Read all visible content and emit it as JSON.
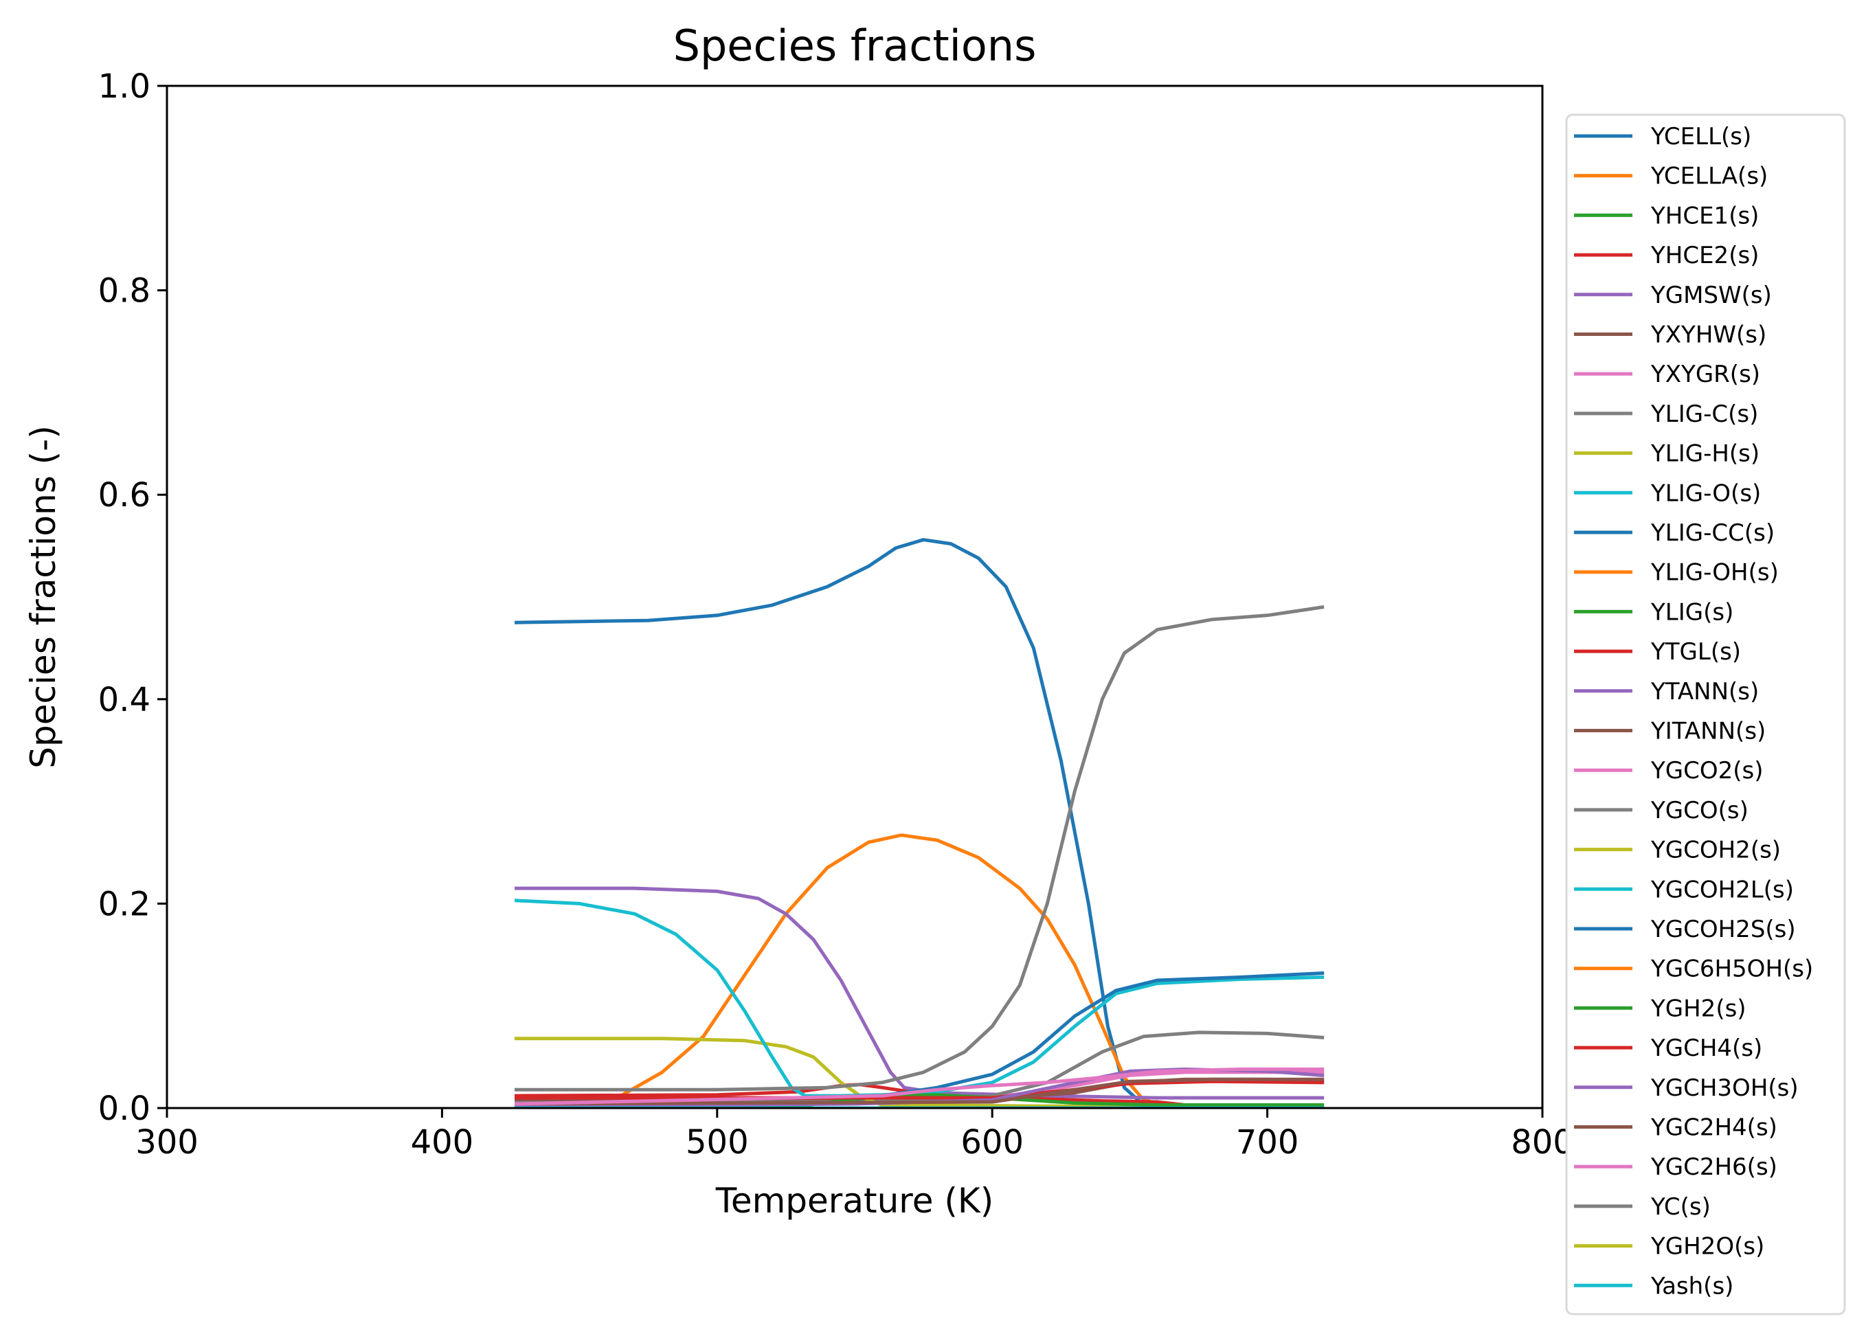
{
  "chart_data": {
    "type": "line",
    "title": "Species fractions",
    "xlabel": "Temperature (K)",
    "ylabel": "Species fractions (-)",
    "xlim": [
      300,
      800
    ],
    "ylim": [
      0.0,
      1.0
    ],
    "xticks": [
      "300",
      "400",
      "500",
      "600",
      "700",
      "800"
    ],
    "yticks": [
      "0.0",
      "0.2",
      "0.4",
      "0.6",
      "0.8",
      "1.0"
    ],
    "grid": false,
    "legend_position": "right, outside plot",
    "series": [
      {
        "name": "YCELL(s)",
        "color": "#1f77b4",
        "points": [
          [
            427,
            0.475
          ],
          [
            450,
            0.476
          ],
          [
            475,
            0.477
          ],
          [
            500,
            0.482
          ],
          [
            520,
            0.492
          ],
          [
            540,
            0.51
          ],
          [
            555,
            0.53
          ],
          [
            565,
            0.548
          ],
          [
            575,
            0.556
          ],
          [
            585,
            0.552
          ],
          [
            595,
            0.538
          ],
          [
            605,
            0.51
          ],
          [
            615,
            0.45
          ],
          [
            625,
            0.34
          ],
          [
            635,
            0.2
          ],
          [
            642,
            0.08
          ],
          [
            648,
            0.02
          ],
          [
            655,
            0.003
          ],
          [
            720,
            0.0
          ]
        ]
      },
      {
        "name": "YCELLA(s)",
        "color": "#ff7f0e",
        "points": [
          [
            427,
            0.0
          ],
          [
            450,
            0.003
          ],
          [
            465,
            0.012
          ],
          [
            480,
            0.035
          ],
          [
            495,
            0.07
          ],
          [
            510,
            0.13
          ],
          [
            525,
            0.19
          ],
          [
            540,
            0.235
          ],
          [
            555,
            0.26
          ],
          [
            567,
            0.267
          ],
          [
            580,
            0.262
          ],
          [
            595,
            0.245
          ],
          [
            610,
            0.215
          ],
          [
            620,
            0.185
          ],
          [
            630,
            0.14
          ],
          [
            640,
            0.08
          ],
          [
            648,
            0.03
          ],
          [
            655,
            0.008
          ],
          [
            665,
            0.001
          ],
          [
            720,
            0.0
          ]
        ]
      },
      {
        "name": "YHCE1(s)",
        "color": "#2ca02c",
        "points": [
          [
            427,
            0.0
          ],
          [
            720,
            0.0
          ]
        ]
      },
      {
        "name": "YHCE2(s)",
        "color": "#d62728",
        "points": [
          [
            427,
            0.012
          ],
          [
            500,
            0.013
          ],
          [
            530,
            0.016
          ],
          [
            545,
            0.022
          ],
          [
            552,
            0.023
          ],
          [
            560,
            0.02
          ],
          [
            570,
            0.016
          ],
          [
            590,
            0.012
          ],
          [
            620,
            0.009
          ],
          [
            640,
            0.007
          ],
          [
            660,
            0.006
          ],
          [
            670,
            0.003
          ],
          [
            720,
            0.0
          ]
        ]
      },
      {
        "name": "YGMSW(s)",
        "color": "#9467bd",
        "points": [
          [
            427,
            0.215
          ],
          [
            470,
            0.215
          ],
          [
            500,
            0.212
          ],
          [
            515,
            0.205
          ],
          [
            525,
            0.19
          ],
          [
            535,
            0.165
          ],
          [
            545,
            0.125
          ],
          [
            555,
            0.075
          ],
          [
            563,
            0.035
          ],
          [
            568,
            0.02
          ],
          [
            580,
            0.015
          ],
          [
            620,
            0.012
          ],
          [
            660,
            0.01
          ],
          [
            720,
            0.01
          ]
        ]
      },
      {
        "name": "YXYHW(s)",
        "color": "#8c564b",
        "points": [
          [
            427,
            0.008
          ],
          [
            550,
            0.008
          ],
          [
            600,
            0.009
          ],
          [
            630,
            0.015
          ],
          [
            650,
            0.025
          ],
          [
            670,
            0.028
          ],
          [
            700,
            0.028
          ],
          [
            720,
            0.027
          ]
        ]
      },
      {
        "name": "YXYGR(s)",
        "color": "#e377c2",
        "points": [
          [
            427,
            0.005
          ],
          [
            550,
            0.006
          ],
          [
            600,
            0.01
          ],
          [
            630,
            0.022
          ],
          [
            650,
            0.032
          ],
          [
            670,
            0.035
          ],
          [
            700,
            0.035
          ],
          [
            720,
            0.035
          ]
        ]
      },
      {
        "name": "YLIG-C(s)",
        "color": "#7f7f7f",
        "points": [
          [
            427,
            0.005
          ],
          [
            550,
            0.006
          ],
          [
            600,
            0.012
          ],
          [
            620,
            0.025
          ],
          [
            640,
            0.055
          ],
          [
            655,
            0.07
          ],
          [
            675,
            0.074
          ],
          [
            700,
            0.073
          ],
          [
            720,
            0.069
          ]
        ]
      },
      {
        "name": "YLIG-H(s)",
        "color": "#bcbd22",
        "points": [
          [
            427,
            0.068
          ],
          [
            480,
            0.068
          ],
          [
            510,
            0.066
          ],
          [
            525,
            0.06
          ],
          [
            535,
            0.05
          ],
          [
            545,
            0.025
          ],
          [
            553,
            0.01
          ],
          [
            560,
            0.003
          ],
          [
            720,
            0.0
          ]
        ]
      },
      {
        "name": "YLIG-O(s)",
        "color": "#17becf",
        "points": [
          [
            427,
            0.203
          ],
          [
            450,
            0.2
          ],
          [
            470,
            0.19
          ],
          [
            485,
            0.17
          ],
          [
            500,
            0.135
          ],
          [
            510,
            0.095
          ],
          [
            520,
            0.05
          ],
          [
            527,
            0.02
          ],
          [
            532,
            0.012
          ],
          [
            545,
            0.012
          ],
          [
            560,
            0.013
          ],
          [
            580,
            0.016
          ],
          [
            600,
            0.025
          ],
          [
            615,
            0.045
          ],
          [
            630,
            0.08
          ],
          [
            645,
            0.112
          ],
          [
            660,
            0.122
          ],
          [
            690,
            0.126
          ],
          [
            720,
            0.128
          ]
        ]
      },
      {
        "name": "YLIG-CC(s)",
        "color": "#1f77b4",
        "points": [
          [
            427,
            0.003
          ],
          [
            540,
            0.005
          ],
          [
            560,
            0.012
          ],
          [
            580,
            0.02
          ],
          [
            600,
            0.033
          ],
          [
            615,
            0.055
          ],
          [
            630,
            0.09
          ],
          [
            645,
            0.115
          ],
          [
            660,
            0.125
          ],
          [
            690,
            0.128
          ],
          [
            720,
            0.132
          ]
        ]
      },
      {
        "name": "YLIG-OH(s)",
        "color": "#ff7f0e",
        "points": [
          [
            427,
            0.0
          ],
          [
            720,
            0.0
          ]
        ]
      },
      {
        "name": "YLIG(s)",
        "color": "#2ca02c",
        "points": [
          [
            427,
            0.0
          ],
          [
            530,
            0.002
          ],
          [
            560,
            0.012
          ],
          [
            580,
            0.013
          ],
          [
            600,
            0.01
          ],
          [
            630,
            0.005
          ],
          [
            660,
            0.003
          ],
          [
            720,
            0.003
          ]
        ]
      },
      {
        "name": "YTGL(s)",
        "color": "#d62728",
        "points": [
          [
            427,
            0.01
          ],
          [
            520,
            0.01
          ],
          [
            560,
            0.01
          ],
          [
            600,
            0.01
          ],
          [
            630,
            0.018
          ],
          [
            650,
            0.024
          ],
          [
            680,
            0.026
          ],
          [
            720,
            0.025
          ]
        ]
      },
      {
        "name": "YTANN(s)",
        "color": "#9467bd",
        "points": [
          [
            427,
            0.002
          ],
          [
            550,
            0.004
          ],
          [
            600,
            0.008
          ],
          [
            630,
            0.025
          ],
          [
            650,
            0.036
          ],
          [
            670,
            0.038
          ],
          [
            700,
            0.036
          ],
          [
            720,
            0.032
          ]
        ]
      },
      {
        "name": "YITANN(s)",
        "color": "#8c564b",
        "points": [
          [
            427,
            0.004
          ],
          [
            600,
            0.006
          ],
          [
            630,
            0.018
          ],
          [
            650,
            0.026
          ],
          [
            680,
            0.028
          ],
          [
            720,
            0.028
          ]
        ]
      },
      {
        "name": "YGCO2(s)",
        "color": "#e377c2",
        "points": [
          [
            427,
            0.004
          ],
          [
            560,
            0.012
          ],
          [
            580,
            0.018
          ],
          [
            600,
            0.022
          ],
          [
            620,
            0.025
          ],
          [
            640,
            0.03
          ],
          [
            660,
            0.036
          ],
          [
            690,
            0.038
          ],
          [
            720,
            0.038
          ]
        ]
      },
      {
        "name": "YGCO(s)",
        "color": "#7f7f7f",
        "points": [
          [
            427,
            0.018
          ],
          [
            500,
            0.018
          ],
          [
            540,
            0.02
          ],
          [
            560,
            0.025
          ],
          [
            575,
            0.035
          ],
          [
            590,
            0.055
          ],
          [
            600,
            0.08
          ],
          [
            610,
            0.12
          ],
          [
            620,
            0.2
          ],
          [
            630,
            0.31
          ],
          [
            640,
            0.4
          ],
          [
            648,
            0.445
          ],
          [
            660,
            0.468
          ],
          [
            680,
            0.478
          ],
          [
            700,
            0.482
          ],
          [
            720,
            0.49
          ]
        ]
      },
      {
        "name": "YGCOH2(s)",
        "color": "#bcbd22",
        "points": [
          [
            427,
            0.0
          ],
          [
            720,
            0.0
          ]
        ]
      },
      {
        "name": "YGCOH2L(s)",
        "color": "#17becf",
        "points": [
          [
            427,
            0.0
          ],
          [
            720,
            0.0
          ]
        ]
      },
      {
        "name": "YGCOH2S(s)",
        "color": "#1f77b4",
        "points": [
          [
            427,
            0.0
          ],
          [
            720,
            0.0
          ]
        ]
      },
      {
        "name": "YGC6H5OH(s)",
        "color": "#ff7f0e",
        "points": [
          [
            427,
            0.0
          ],
          [
            720,
            0.0
          ]
        ]
      },
      {
        "name": "YGH2(s)",
        "color": "#2ca02c",
        "points": [
          [
            427,
            0.0
          ],
          [
            720,
            0.0
          ]
        ]
      },
      {
        "name": "YGCH4(s)",
        "color": "#d62728",
        "points": [
          [
            427,
            0.0
          ],
          [
            720,
            0.0
          ]
        ]
      },
      {
        "name": "YGCH3OH(s)",
        "color": "#9467bd",
        "points": [
          [
            427,
            0.0
          ],
          [
            720,
            0.0
          ]
        ]
      },
      {
        "name": "YGC2H4(s)",
        "color": "#8c564b",
        "points": [
          [
            427,
            0.0
          ],
          [
            720,
            0.0
          ]
        ]
      },
      {
        "name": "YGC2H6(s)",
        "color": "#e377c2",
        "points": [
          [
            427,
            0.0
          ],
          [
            720,
            0.0
          ]
        ]
      },
      {
        "name": "YC(s)",
        "color": "#7f7f7f",
        "points": [
          [
            427,
            0.0
          ],
          [
            720,
            0.0
          ]
        ]
      },
      {
        "name": "YGH2O(s)",
        "color": "#bcbd22",
        "points": [
          [
            427,
            0.0
          ],
          [
            720,
            0.0
          ]
        ]
      },
      {
        "name": "Yash(s)",
        "color": "#17becf",
        "points": [
          [
            427,
            0.0
          ],
          [
            720,
            0.0
          ]
        ]
      }
    ]
  }
}
